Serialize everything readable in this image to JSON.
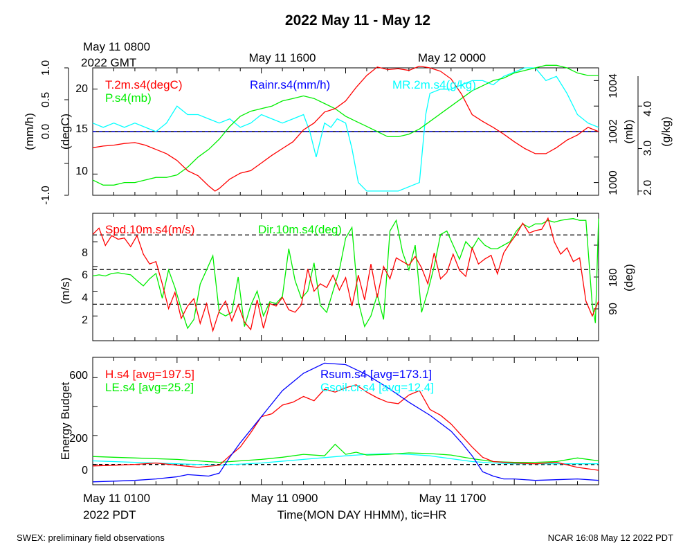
{
  "title": "2022 May 11 - May 12",
  "gmt_axis": {
    "start_line1": "May 11 0800",
    "start_line2": "2022 GMT",
    "labels": [
      "May 11 1600",
      "May 12 0000"
    ]
  },
  "pdt_axis": {
    "start_line1": "May 11 0100",
    "start_line2": "2022 PDT",
    "labels": [
      "May 11 0900",
      "May 11 1700"
    ],
    "xlabel": "Time(MON DAY HHMM), tic=HR"
  },
  "footer": {
    "left": "SWEX: preliminary field observations",
    "right": "NCAR 16:08 May 12 2022 PDT"
  },
  "colors": {
    "red": "#ff0000",
    "green": "#00ee00",
    "blue": "#0000ff",
    "cyan": "#00ffff",
    "black": "#000000"
  },
  "chart_data": [
    {
      "type": "line",
      "panel": "temperature-pressure-rain-mixing-ratio",
      "x_unit": "hours since May 11 0100 PDT",
      "xlim": [
        0,
        24
      ],
      "axes": {
        "rain": {
          "label": "(mm/h)",
          "ticks": [
            "-1.0",
            "0.0",
            "0.5",
            "1.0"
          ],
          "ylim": [
            -1,
            1
          ]
        },
        "temp": {
          "label": "(degC)",
          "ticks": [
            "10",
            "15",
            "20"
          ],
          "ylim": [
            7.5,
            22.5
          ]
        },
        "pres": {
          "label": "(mb)",
          "ticks": [
            "1000",
            "1002",
            "1004"
          ],
          "ylim": [
            999.5,
            1004.5
          ]
        },
        "mr": {
          "label": "(g/kg)",
          "ticks": [
            "2.0",
            "3.0",
            "4.0"
          ],
          "ylim": [
            1.9,
            4.9
          ]
        }
      },
      "legend": [
        "T.2m.s4(degC)",
        "Rainr.s4(mm/h)",
        "MR.2m.s4(g/kg)",
        "P.s4(mb)"
      ],
      "series": [
        {
          "name": "T.2m.s4(degC)",
          "color": "#ff0000",
          "axis": "temp",
          "x": [
            0,
            0.5,
            1,
            1.5,
            2,
            2.5,
            3,
            3.5,
            4,
            4.5,
            5,
            5.5,
            5.8,
            6,
            6.5,
            7,
            7.5,
            8,
            8.5,
            9,
            9.5,
            10,
            10.5,
            11,
            11.5,
            12,
            12.5,
            13,
            13.5,
            14,
            14.5,
            15,
            15.5,
            16,
            16.5,
            17,
            17.5,
            18,
            18.5,
            19,
            19.5,
            20,
            20.5,
            21,
            21.5,
            22,
            22.5,
            23,
            23.5,
            24
          ],
          "y": [
            13.1,
            13.3,
            13.4,
            13.6,
            13.7,
            13.4,
            12.9,
            12.4,
            11.6,
            10.4,
            9.8,
            8.6,
            8.0,
            8.3,
            9.4,
            10.1,
            10.4,
            11.3,
            12.2,
            13.0,
            13.8,
            15.2,
            16.0,
            17.3,
            17.7,
            18.6,
            20.2,
            21.6,
            22.6,
            22.3,
            22.4,
            22.2,
            22.7,
            22.5,
            22.1,
            21.2,
            19.4,
            17.0,
            16.2,
            15.5,
            14.7,
            13.8,
            13.0,
            12.4,
            12.4,
            13.1,
            14.0,
            14.6,
            15.5,
            15.0
          ]
        },
        {
          "name": "P.s4(mb)",
          "color": "#00ee00",
          "axis": "pres",
          "x": [
            0,
            0.5,
            1,
            1.5,
            2,
            2.5,
            3,
            3.5,
            4,
            4.5,
            5,
            5.5,
            6,
            6.5,
            7,
            7.5,
            8,
            8.5,
            9,
            9.5,
            10,
            10.5,
            11,
            11.5,
            12,
            12.5,
            13,
            13.5,
            14,
            14.5,
            15,
            15.5,
            16,
            16.5,
            17,
            17.5,
            18,
            18.5,
            19,
            19.5,
            20,
            20.5,
            21,
            21.5,
            22,
            22.5,
            23,
            23.5,
            24
          ],
          "y": [
            1000.1,
            999.9,
            999.9,
            1000.0,
            1000.0,
            1000.1,
            1000.2,
            1000.2,
            1000.3,
            1000.6,
            1001.0,
            1001.3,
            1001.7,
            1002.2,
            1002.6,
            1002.8,
            1002.9,
            1003.0,
            1003.2,
            1003.3,
            1003.4,
            1003.3,
            1003.1,
            1002.9,
            1002.6,
            1002.4,
            1002.2,
            1002.0,
            1001.8,
            1001.8,
            1001.9,
            1002.1,
            1002.4,
            1002.7,
            1003.0,
            1003.3,
            1003.6,
            1003.8,
            1004.0,
            1004.1,
            1004.3,
            1004.4,
            1004.5,
            1004.6,
            1004.6,
            1004.5,
            1004.3,
            1004.2,
            1004.2
          ]
        },
        {
          "name": "MR.2m.s4(g/kg)",
          "color": "#00ffff",
          "axis": "mr",
          "x": [
            0,
            0.5,
            1,
            1.5,
            2,
            2.5,
            3,
            3.5,
            4,
            4.5,
            5,
            5.5,
            6,
            6.5,
            7,
            7.5,
            8,
            8.5,
            9,
            9.5,
            10,
            10.3,
            10.6,
            11,
            11.3,
            11.6,
            12,
            12.3,
            12.6,
            13,
            13.5,
            14,
            14.5,
            15,
            15.5,
            15.8,
            16,
            16.5,
            17,
            17.5,
            18,
            18.5,
            19,
            19.5,
            20,
            20.5,
            21,
            21.5,
            22,
            22.5,
            23,
            23.5,
            24
          ],
          "y": [
            3.6,
            3.5,
            3.6,
            3.5,
            3.6,
            3.5,
            3.4,
            3.6,
            4.0,
            3.8,
            3.8,
            3.7,
            3.6,
            3.7,
            3.5,
            3.6,
            3.8,
            3.7,
            3.6,
            3.7,
            3.8,
            3.4,
            2.8,
            3.6,
            3.5,
            3.7,
            3.6,
            3.0,
            2.2,
            2.0,
            2.0,
            2.0,
            2.0,
            2.1,
            2.2,
            3.8,
            4.3,
            4.4,
            4.4,
            4.5,
            4.6,
            4.6,
            4.5,
            4.7,
            4.8,
            4.9,
            4.9,
            4.6,
            4.7,
            4.3,
            3.8,
            3.6,
            3.5
          ]
        },
        {
          "name": "Rainr.s4(mm/h)",
          "color": "#0000ff",
          "axis": "rain",
          "style": "dashed",
          "x": [
            0,
            24
          ],
          "y": [
            0,
            0
          ]
        }
      ],
      "reference_lines": [
        {
          "axis": "rain",
          "y": 0,
          "style": "solid",
          "color": "#000000"
        }
      ]
    },
    {
      "type": "line",
      "panel": "wind",
      "x_unit": "hours since May 11 0100 PDT",
      "xlim": [
        0,
        24
      ],
      "axes": {
        "spd": {
          "label": "(m/s)",
          "ticks": [
            "2",
            "4",
            "6",
            "8"
          ],
          "ylim": [
            0,
            10.3
          ]
        },
        "dir": {
          "label": "(deg)",
          "ticks": [
            "90",
            "180"
          ],
          "ylim": [
            0,
            360
          ]
        }
      },
      "legend": [
        "Spd.10m.s4(m/s)",
        "Dir.10m.s4(deg)"
      ],
      "reference_lines": [
        {
          "axis": "spd",
          "y": 2.95
        },
        {
          "axis": "spd",
          "y": 5.75
        },
        {
          "axis": "spd",
          "y": 8.55
        }
      ],
      "series": [
        {
          "name": "Spd.10m.s4(m/s)",
          "color": "#ff0000",
          "axis": "spd",
          "x": [
            0,
            0.3,
            0.6,
            0.9,
            1.2,
            1.5,
            1.8,
            2.1,
            2.4,
            2.7,
            3.0,
            3.3,
            3.6,
            3.9,
            4.2,
            4.5,
            4.8,
            5.1,
            5.4,
            5.7,
            6.0,
            6.3,
            6.6,
            6.9,
            7.2,
            7.5,
            7.8,
            8.1,
            8.4,
            8.7,
            9.0,
            9.3,
            9.6,
            9.9,
            10.2,
            10.5,
            10.8,
            11.1,
            11.4,
            11.7,
            12.0,
            12.3,
            12.6,
            12.9,
            13.2,
            13.5,
            13.8,
            14.1,
            14.4,
            14.7,
            15.0,
            15.3,
            15.6,
            15.9,
            16.2,
            16.5,
            16.8,
            17.1,
            17.4,
            17.7,
            18.0,
            18.3,
            18.6,
            18.9,
            19.2,
            19.5,
            19.8,
            20.1,
            20.4,
            20.7,
            21.0,
            21.3,
            21.6,
            21.9,
            22.2,
            22.5,
            22.8,
            23.1,
            23.4,
            23.7,
            24
          ],
          "y": [
            8.6,
            9.1,
            7.7,
            8.5,
            8.2,
            8.3,
            7.6,
            8.5,
            7.0,
            6.2,
            6.4,
            4.6,
            2.6,
            3.9,
            1.8,
            2.8,
            3.4,
            1.4,
            3.0,
            0.8,
            2.4,
            3.2,
            1.6,
            2.9,
            1.5,
            0.9,
            3.3,
            1.0,
            3.0,
            2.8,
            3.5,
            2.5,
            2.3,
            2.9,
            5.8,
            4.0,
            4.6,
            4.3,
            5.3,
            4.1,
            5.1,
            2.8,
            5.3,
            3.3,
            6.2,
            3.5,
            6.0,
            5.0,
            6.7,
            6.4,
            6.1,
            6.8,
            5.9,
            4.6,
            7.1,
            5.0,
            5.5,
            7.0,
            5.7,
            5.2,
            7.5,
            6.2,
            6.6,
            6.9,
            5.4,
            7.1,
            7.9,
            8.6,
            9.5,
            8.7,
            8.9,
            9.0,
            9.9,
            8.0,
            7.0,
            7.5,
            6.4,
            6.7,
            3.2,
            2.0,
            3.2
          ]
        },
        {
          "name": "Dir.10m.s4(deg)",
          "color": "#00ee00",
          "axis": "dir",
          "x": [
            0,
            0.3,
            0.6,
            0.9,
            1.2,
            1.5,
            1.8,
            2.1,
            2.4,
            2.7,
            3.0,
            3.3,
            3.6,
            3.9,
            4.2,
            4.5,
            4.8,
            5.1,
            5.4,
            5.7,
            6.0,
            6.3,
            6.6,
            6.9,
            7.2,
            7.5,
            7.8,
            8.1,
            8.4,
            8.7,
            9.0,
            9.3,
            9.6,
            9.9,
            10.2,
            10.5,
            10.8,
            11.1,
            11.4,
            11.7,
            12.0,
            12.3,
            12.6,
            12.9,
            13.2,
            13.5,
            13.8,
            14.1,
            14.4,
            14.7,
            15.0,
            15.3,
            15.6,
            15.9,
            16.2,
            16.5,
            16.8,
            17.1,
            17.4,
            17.7,
            18.0,
            18.3,
            18.6,
            18.9,
            19.2,
            19.5,
            19.8,
            20.1,
            20.4,
            20.7,
            21.0,
            21.3,
            21.6,
            21.9,
            22.2,
            22.5,
            22.8,
            23.1,
            23.4,
            23.7,
            23.85,
            24
          ],
          "y": [
            183,
            186,
            183,
            190,
            192,
            189,
            186,
            170,
            155,
            175,
            190,
            120,
            200,
            150,
            90,
            35,
            60,
            160,
            200,
            240,
            80,
            70,
            80,
            180,
            40,
            100,
            140,
            70,
            110,
            105,
            125,
            260,
            170,
            120,
            140,
            220,
            100,
            80,
            140,
            200,
            290,
            320,
            110,
            40,
            70,
            130,
            60,
            310,
            340,
            250,
            200,
            270,
            80,
            140,
            210,
            300,
            310,
            270,
            230,
            280,
            260,
            290,
            270,
            260,
            260,
            270,
            280,
            310,
            330,
            320,
            330,
            330,
            340,
            335,
            340,
            343,
            345,
            340,
            340,
            100,
            50,
            345
          ]
        }
      ]
    },
    {
      "type": "line",
      "panel": "energy-budget",
      "x_unit": "hours since May 11 0100 PDT",
      "xlim": [
        0,
        24
      ],
      "ylabel": "Energy Budget",
      "ylim": [
        -140,
        740
      ],
      "yticks": [
        "0",
        "200",
        "600"
      ],
      "legend": [
        "H.s4 [avg=197.5]",
        "Rsum.s4 [avg=173.1]",
        "LE.s4 [avg=25.2]",
        "Gsoil.cr.s4 [avg=12.4]"
      ],
      "reference_lines": [
        {
          "y": 0,
          "style": "dashed",
          "color": "#000000"
        }
      ],
      "series": [
        {
          "name": "H.s4 [avg=197.5]",
          "color": "#ff0000",
          "x": [
            0,
            1,
            2,
            3,
            4,
            5,
            6,
            6.5,
            7,
            7.5,
            8,
            8.5,
            9,
            9.5,
            10,
            10.5,
            11,
            11.5,
            12,
            12.5,
            13,
            13.5,
            14,
            14.5,
            15,
            15.5,
            16,
            16.5,
            17,
            17.5,
            18,
            18.5,
            19,
            20,
            21,
            22,
            23,
            24
          ],
          "y": [
            -10,
            -5,
            0,
            10,
            -5,
            -20,
            -5,
            60,
            120,
            220,
            330,
            350,
            410,
            430,
            470,
            440,
            520,
            500,
            530,
            550,
            500,
            460,
            430,
            420,
            480,
            510,
            380,
            340,
            280,
            200,
            120,
            50,
            20,
            10,
            5,
            15,
            -20,
            -40
          ]
        },
        {
          "name": "Rsum.s4 [avg=173.1]",
          "color": "#0000ff",
          "x": [
            0,
            1,
            2,
            3,
            4,
            4.5,
            5,
            5.5,
            6,
            6.5,
            7,
            8,
            9,
            10,
            11,
            12,
            13,
            14,
            15,
            16,
            17,
            17.5,
            18,
            18.5,
            19,
            19.5,
            20,
            21,
            22,
            23,
            24
          ],
          "y": [
            -120,
            -115,
            -110,
            -100,
            -85,
            -70,
            -75,
            -80,
            -60,
            50,
            150,
            330,
            510,
            630,
            700,
            690,
            620,
            530,
            430,
            340,
            230,
            150,
            60,
            -50,
            -80,
            -100,
            -100,
            -110,
            -105,
            -100,
            -110
          ]
        },
        {
          "name": "LE.s4 [avg=25.2]",
          "color": "#00ee00",
          "x": [
            0,
            1,
            2,
            3,
            4,
            5,
            6,
            7,
            8,
            9,
            10,
            11,
            11.5,
            12,
            12.5,
            13,
            14,
            15,
            16,
            17,
            18,
            19,
            20,
            21,
            22,
            23,
            24
          ],
          "y": [
            55,
            50,
            45,
            40,
            35,
            25,
            15,
            25,
            35,
            50,
            70,
            60,
            140,
            70,
            85,
            65,
            70,
            80,
            75,
            65,
            40,
            20,
            15,
            15,
            20,
            45,
            25
          ]
        },
        {
          "name": "Gsoil.cr.s4 [avg=12.4]",
          "color": "#00ffff",
          "x": [
            0,
            2,
            4,
            6,
            8,
            10,
            12,
            13,
            14,
            15,
            16,
            17,
            18,
            19,
            20,
            22,
            24
          ],
          "y": [
            25,
            15,
            5,
            -5,
            10,
            35,
            60,
            70,
            75,
            70,
            60,
            40,
            20,
            10,
            5,
            5,
            5
          ]
        }
      ]
    }
  ]
}
